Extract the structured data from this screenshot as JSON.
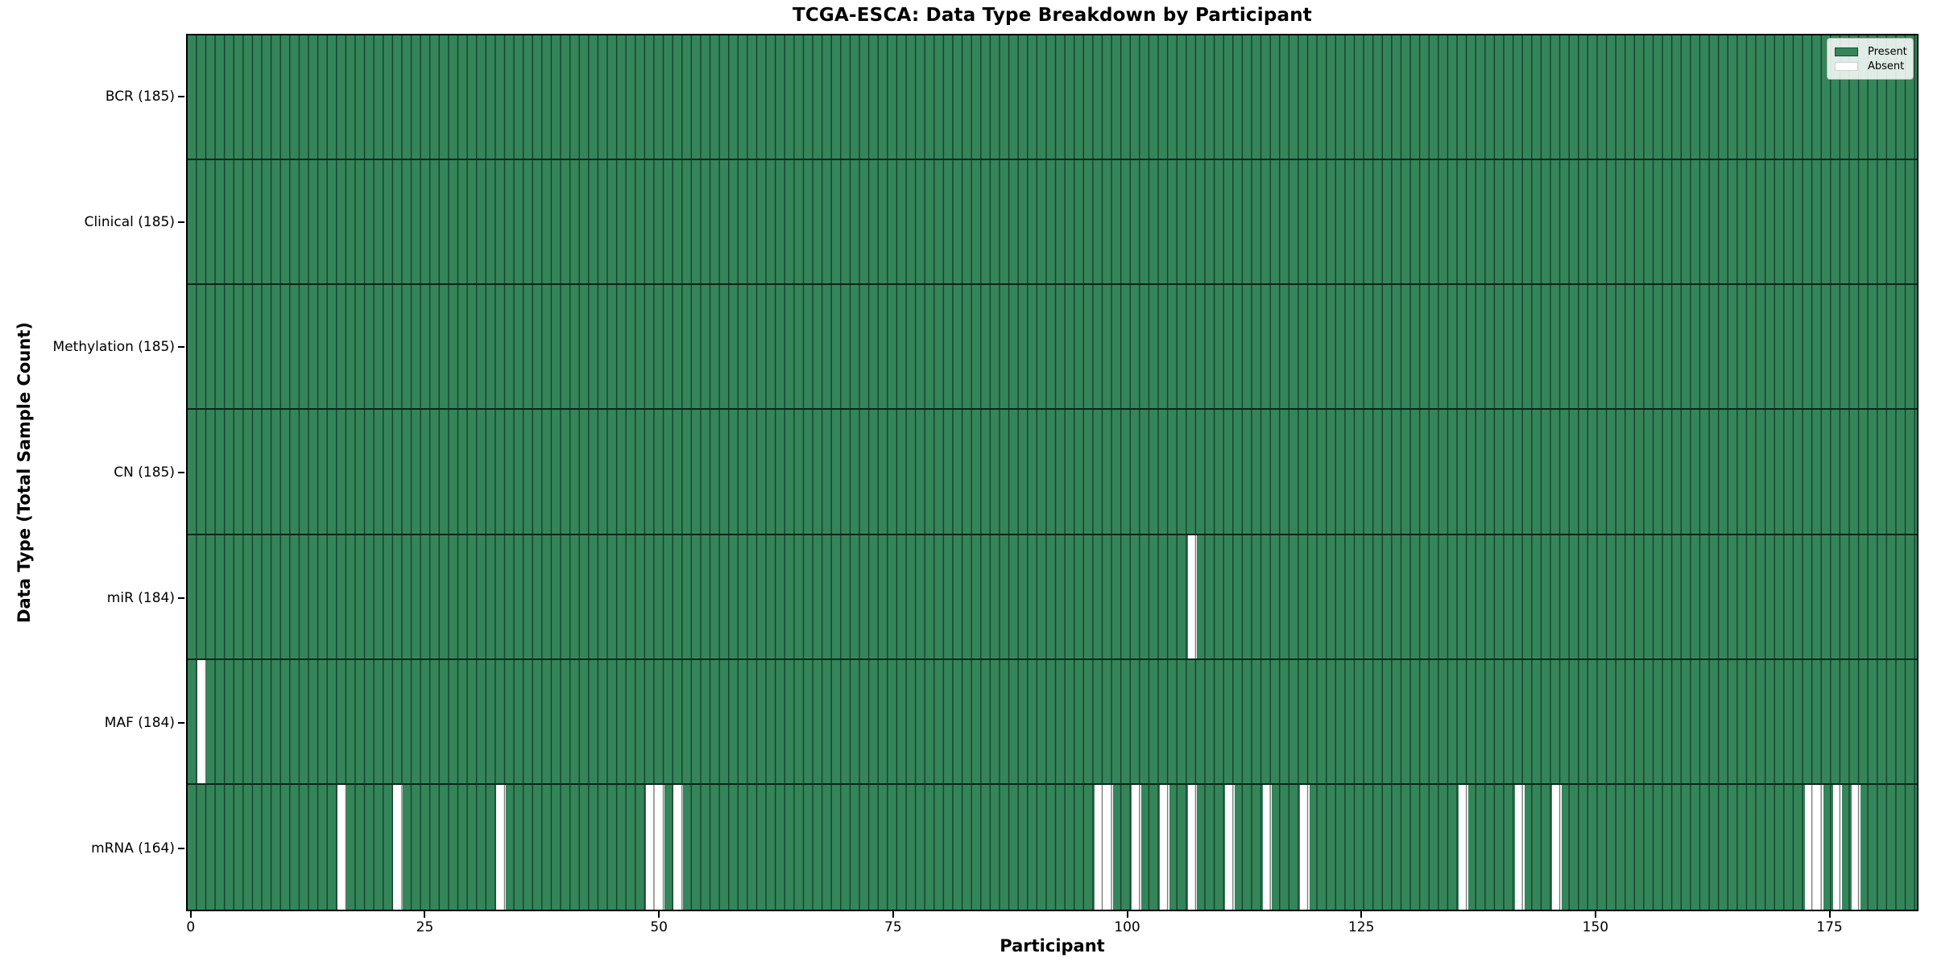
{
  "title": "TCGA-ESCA: Data Type Breakdown by Participant",
  "x_axis": {
    "label": "Participant",
    "ticks": [
      0,
      25,
      50,
      75,
      100,
      125,
      150,
      175
    ]
  },
  "y_axis": {
    "label": "Data Type (Total Sample Count)"
  },
  "legend": {
    "present_label": "Present",
    "absent_label": "Absent"
  },
  "colors": {
    "present": "#34855a",
    "absent": "#ffffff",
    "cell_border": "rgba(0,0,0,0.5)",
    "row_divider": "rgba(0,0,0,0.72)",
    "plot_border": "#000000"
  },
  "chart_data": {
    "type": "heatmap",
    "title": "TCGA-ESCA: Data Type Breakdown by Participant",
    "xlabel": "Participant",
    "ylabel": "Data Type (Total Sample Count)",
    "x_range": [
      0,
      184
    ],
    "n_participants": 185,
    "legend_position": "upper right",
    "grid": "cell borders on",
    "value_encoding": {
      "present": 1,
      "absent": 0
    },
    "rows": [
      {
        "label": "BCR (185)",
        "data_type": "BCR",
        "total": 185,
        "absent_participants": []
      },
      {
        "label": "Clinical (185)",
        "data_type": "Clinical",
        "total": 185,
        "absent_participants": []
      },
      {
        "label": "Methylation (185)",
        "data_type": "Methylation",
        "total": 185,
        "absent_participants": []
      },
      {
        "label": "CN (185)",
        "data_type": "CN",
        "total": 185,
        "absent_participants": []
      },
      {
        "label": "miR (184)",
        "data_type": "miR",
        "total": 184,
        "absent_participants": [
          107
        ]
      },
      {
        "label": "MAF (184)",
        "data_type": "MAF",
        "total": 184,
        "absent_participants": [
          1
        ]
      },
      {
        "label": "mRNA (164)",
        "data_type": "mRNA",
        "total": 164,
        "absent_participants": [
          16,
          22,
          33,
          49,
          50,
          52,
          97,
          98,
          101,
          104,
          107,
          111,
          115,
          119,
          136,
          142,
          146,
          173,
          174,
          176,
          178
        ]
      }
    ]
  }
}
